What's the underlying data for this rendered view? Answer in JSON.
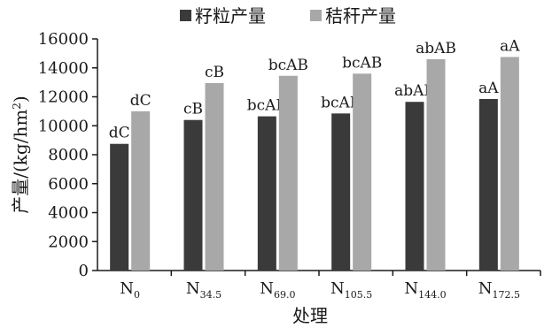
{
  "chart_data": {
    "type": "bar",
    "title": "",
    "xlabel": "处理",
    "ylabel": "产量/(kg/hm²)",
    "ylabel_parts": {
      "main": "产量/(kg/hm",
      "sup": "2",
      "close": ")"
    },
    "ylim": [
      0,
      16000
    ],
    "yticks": [
      0,
      2000,
      4000,
      6000,
      8000,
      10000,
      12000,
      14000,
      16000
    ],
    "categories": [
      {
        "main": "N",
        "sub": "0"
      },
      {
        "main": "N",
        "sub": "34.5"
      },
      {
        "main": "N",
        "sub": "69.0"
      },
      {
        "main": "N",
        "sub": "105.5"
      },
      {
        "main": "N",
        "sub": "144.0"
      },
      {
        "main": "N",
        "sub": "172.5"
      }
    ],
    "series": [
      {
        "name": "籽粒产量",
        "color": "#3a3a3a",
        "values": [
          8750,
          10400,
          10650,
          10850,
          11650,
          11850
        ],
        "labels": [
          "dC",
          "cB",
          "bcAB",
          "bcAB",
          "abAB",
          "aA"
        ]
      },
      {
        "name": "秸秆产量",
        "color": "#a8a8a8",
        "values": [
          11000,
          12950,
          13450,
          13600,
          14600,
          14750
        ],
        "labels": [
          "dC",
          "cB",
          "bcAB",
          "bcAB",
          "abAB",
          "aA"
        ]
      }
    ],
    "legend": "top-center",
    "grid": false
  }
}
